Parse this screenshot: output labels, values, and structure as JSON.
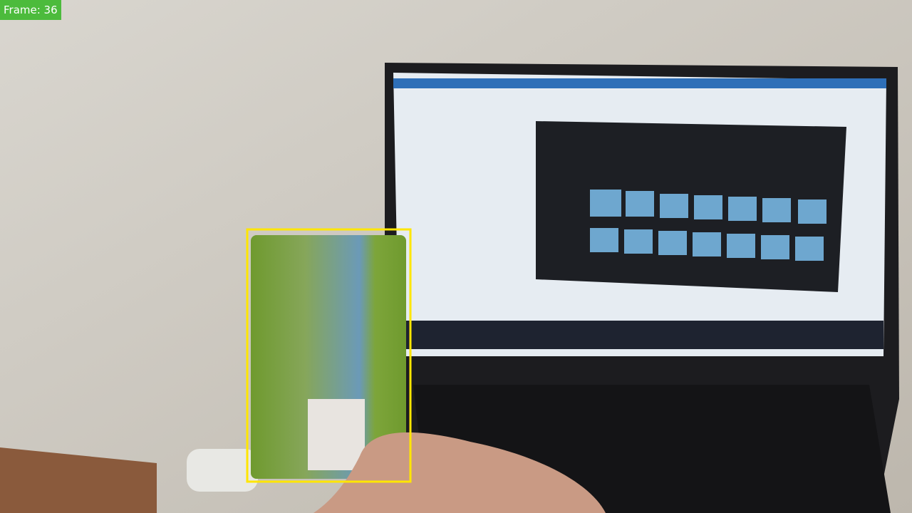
{
  "overlay": {
    "label": "Frame: 36"
  }
}
